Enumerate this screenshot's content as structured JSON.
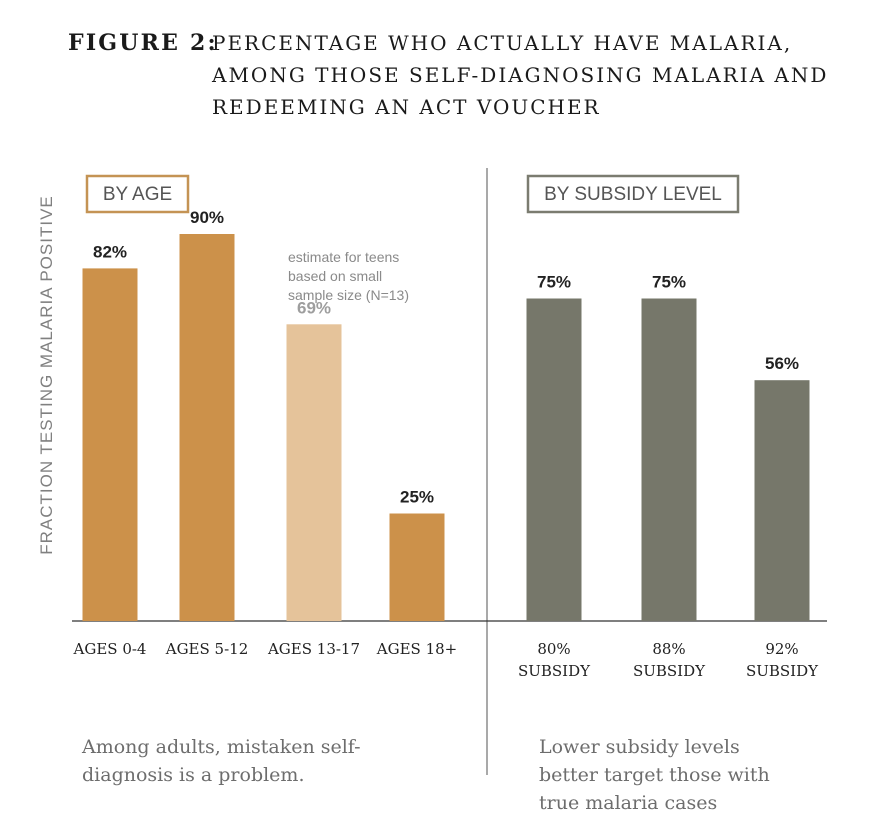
{
  "figure": {
    "label": "FIGURE 2:",
    "title_lines": [
      "PERCENTAGE WHO ACTUALLY HAVE MALARIA,",
      "AMONG THOSE SELF-DIAGNOSING MALARIA AND",
      "REDEEMING AN ACT VOUCHER"
    ]
  },
  "chart_data": [
    {
      "type": "bar",
      "title": "BY AGE",
      "ylabel": "FRACTION TESTING MALARIA POSITIVE",
      "ylim": [
        0,
        100
      ],
      "categories": [
        "AGES 0-4",
        "AGES 5-12",
        "AGES 13-17",
        "AGES 18+"
      ],
      "values": [
        82,
        90,
        69,
        25
      ],
      "value_labels": [
        "82%",
        "90%",
        "69%",
        "25%"
      ],
      "colors": [
        "#CC914A",
        "#CC914A",
        "#E5C39A",
        "#CC914A"
      ],
      "annotation": {
        "lines": [
          "estimate for teens",
          "based on small",
          "sample size (N=13)"
        ],
        "target_category": "AGES 13-17"
      },
      "caption_lines": [
        "Among adults, mistaken self-",
        "diagnosis is a problem."
      ]
    },
    {
      "type": "bar",
      "title": "BY SUBSIDY LEVEL",
      "ylim": [
        0,
        100
      ],
      "categories": [
        [
          "80%",
          "SUBSIDY"
        ],
        [
          "88%",
          "SUBSIDY"
        ],
        [
          "92%",
          "SUBSIDY"
        ]
      ],
      "values": [
        75,
        75,
        56
      ],
      "value_labels": [
        "75%",
        "75%",
        "56%"
      ],
      "colors": [
        "#76776A",
        "#76776A",
        "#76776A"
      ],
      "caption_lines": [
        "Lower subsidy levels",
        "better target those with",
        "true malaria cases"
      ]
    }
  ],
  "colors": {
    "age_box": "#C49354",
    "subsidy_box": "#7B7C70",
    "axis_text": "#808080",
    "value_text": "#222222",
    "annotation_text": "#8a8a8a",
    "teen_value_text": "#9e9e9e",
    "caption_text": "#6d6d6d",
    "divider": "#a9a9a9"
  }
}
